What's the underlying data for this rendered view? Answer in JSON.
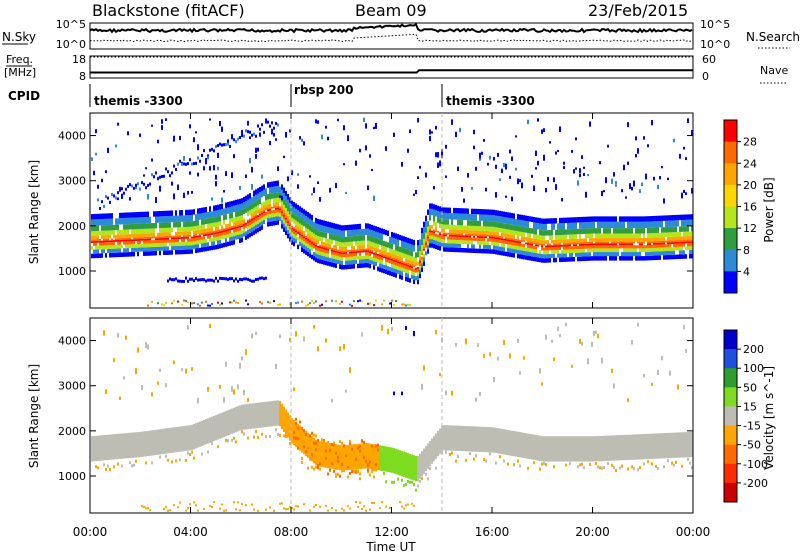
{
  "header": {
    "station": "Blackstone (fitACF)",
    "beam": "Beam 09",
    "date": "23/Feb/2015"
  },
  "noise_panel": {
    "left_label": "N.Sky",
    "right_label": "N.Search",
    "left_ticks": [
      "10^5",
      "10^0"
    ],
    "right_ticks": [
      "10^5",
      "10^0"
    ]
  },
  "freq_panel": {
    "left_label_1": "Freq.",
    "left_label_2": "[MHz]",
    "right_label": "Nave",
    "left_ticks": [
      "18",
      "8"
    ],
    "right_ticks": [
      "60",
      "0"
    ]
  },
  "cpid_panel": {
    "label": "CPID",
    "segments": [
      {
        "name": "themis -3300",
        "start_hour": 0
      },
      {
        "name": "rbsp 200",
        "start_hour": 8
      },
      {
        "name": "themis -3300",
        "start_hour": 14
      }
    ]
  },
  "x_axis": {
    "label": "Time UT",
    "ticks": [
      "00:00",
      "04:00",
      "08:00",
      "12:00",
      "16:00",
      "20:00",
      "00:00"
    ],
    "range_hours": [
      0,
      24
    ]
  },
  "y_axis": {
    "label": "Slant Range [km]",
    "ticks": [
      "1000",
      "2000",
      "3000",
      "4000"
    ],
    "range_km": [
      180,
      4500
    ]
  },
  "power_colorbar": {
    "label": "Power [dB]",
    "ticks": [
      "28",
      "24",
      "20",
      "16",
      "12",
      "8",
      "4"
    ],
    "colors": [
      "#ff0000",
      "#ff6a00",
      "#ffa500",
      "#ffd700",
      "#b5e61d",
      "#2e9e3e",
      "#2d8bd6",
      "#0000ff"
    ]
  },
  "velocity_colorbar": {
    "label": "Velocity [m s^-1]",
    "ticks": [
      "200",
      "100",
      "50",
      "15",
      "-15",
      "-50",
      "-100",
      "-200"
    ],
    "colors": [
      "#0000cc",
      "#1f4fe0",
      "#2d9e2d",
      "#7ddc1f",
      "#bdbdb3",
      "#ffa500",
      "#ff6a00",
      "#ff2a00",
      "#cc0000"
    ]
  },
  "chart_data": {
    "type": "heatmap",
    "title": "Blackstone (fitACF)",
    "xlabel": "Time UT",
    "ylabel": "Slant Range [km]",
    "xlim_hours": [
      0,
      24
    ],
    "ylim_km": [
      180,
      4500
    ],
    "panels": [
      {
        "name": "Power",
        "unit": "dB",
        "main_band_center_km": [
          [
            0,
            1700
          ],
          [
            2,
            1750
          ],
          [
            4,
            1800
          ],
          [
            5,
            1900
          ],
          [
            6,
            2050
          ],
          [
            7,
            2400
          ],
          [
            7.5,
            2450
          ],
          [
            8,
            2000
          ],
          [
            9,
            1600
          ],
          [
            10,
            1450
          ],
          [
            11,
            1500
          ],
          [
            12,
            1300
          ],
          [
            13,
            1100
          ],
          [
            13.5,
            1950
          ],
          [
            14,
            1850
          ],
          [
            16,
            1800
          ],
          [
            18,
            1600
          ],
          [
            20,
            1650
          ],
          [
            22,
            1650
          ],
          [
            24,
            1700
          ]
        ]
      },
      {
        "name": "Velocity",
        "unit": "m s^-1",
        "main_band_center_km": [
          [
            0,
            1600
          ],
          [
            2,
            1700
          ],
          [
            4,
            1850
          ],
          [
            6,
            2300
          ],
          [
            7.5,
            2400
          ],
          [
            8,
            2000
          ],
          [
            9,
            1500
          ],
          [
            10,
            1400
          ],
          [
            11,
            1450
          ],
          [
            12,
            1350
          ],
          [
            13,
            1150
          ],
          [
            14,
            1850
          ],
          [
            16,
            1800
          ],
          [
            18,
            1600
          ],
          [
            20,
            1600
          ],
          [
            22,
            1650
          ],
          [
            24,
            1700
          ]
        ]
      }
    ],
    "frequency_mhz": [
      [
        0,
        10.5
      ],
      [
        13,
        10.5
      ],
      [
        13.1,
        11.5
      ],
      [
        24,
        11.5
      ]
    ],
    "nave": [
      [
        0,
        60
      ],
      [
        24,
        60
      ]
    ]
  }
}
